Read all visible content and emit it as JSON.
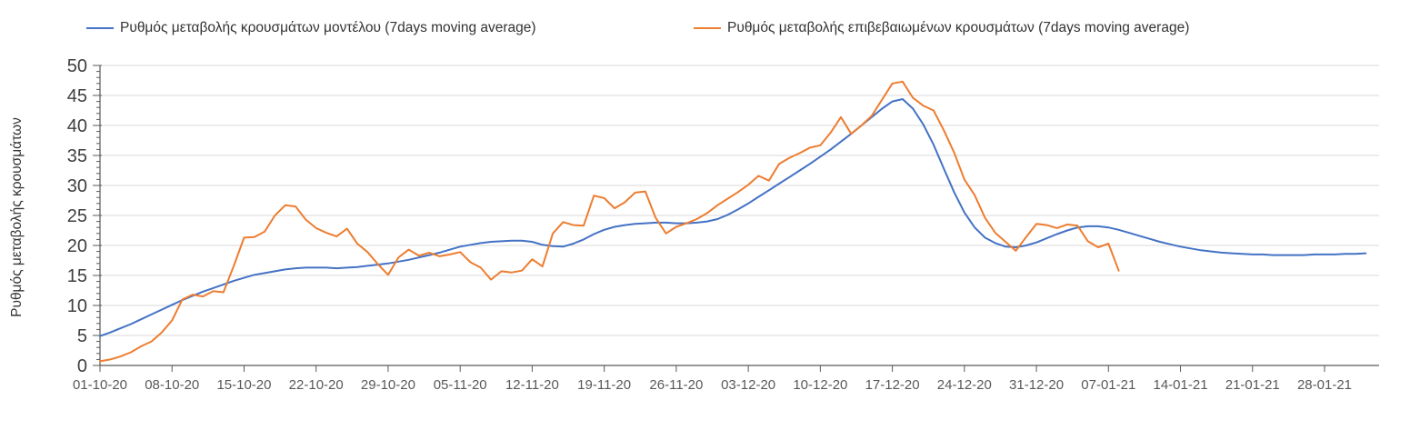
{
  "legend": {
    "items": [
      {
        "label": "Ρυθμός μεταβολής κρουσμάτων μοντέλου (7days moving average)",
        "color": "#4472C4"
      },
      {
        "label": "Ρυθμός μεταβολής επιβεβαιωμένων κρουσμάτων (7days moving average)",
        "color": "#ED7D31"
      }
    ]
  },
  "chart_data": {
    "type": "line",
    "title": "",
    "xlabel": "",
    "ylabel": "Ρυθμός μεταβολής κρουσμάτων",
    "ylim": [
      0,
      50
    ],
    "y_tick_step": 5,
    "y_minor_tick_step": 1,
    "grid": true,
    "legend_position": "top",
    "x_start_date": "01-10-20",
    "x_interval_days": 1,
    "x_tick_every_days": 7,
    "x_total_days": 124,
    "x_tick_labels": [
      "01-10-20",
      "08-10-20",
      "15-10-20",
      "22-10-20",
      "29-10-20",
      "05-11-20",
      "12-11-20",
      "19-11-20",
      "26-11-20",
      "03-12-20",
      "10-12-20",
      "17-12-20",
      "24-12-20",
      "31-12-20",
      "07-01-21",
      "14-01-21",
      "21-01-21",
      "28-01-21"
    ],
    "series": [
      {
        "name": "Ρυθμός μεταβολής κρουσμάτων μοντέλου (7days moving average)",
        "color": "#4472C4",
        "start_day": 0,
        "values": [
          4.9,
          5.5,
          6.2,
          6.9,
          7.7,
          8.5,
          9.3,
          10.1,
          10.9,
          11.6,
          12.3,
          12.9,
          13.5,
          14.1,
          14.6,
          15.1,
          15.4,
          15.7,
          16.0,
          16.2,
          16.3,
          16.3,
          16.3,
          16.2,
          16.3,
          16.4,
          16.6,
          16.8,
          17.0,
          17.3,
          17.6,
          18.0,
          18.4,
          18.8,
          19.3,
          19.8,
          20.1,
          20.4,
          20.6,
          20.7,
          20.8,
          20.8,
          20.6,
          20.1,
          19.9,
          19.8,
          20.3,
          21.0,
          21.9,
          22.6,
          23.1,
          23.4,
          23.6,
          23.7,
          23.8,
          23.8,
          23.7,
          23.7,
          23.8,
          24.0,
          24.4,
          25.1,
          26.0,
          27.0,
          28.1,
          29.2,
          30.3,
          31.4,
          32.5,
          33.6,
          34.8,
          36.0,
          37.3,
          38.6,
          40.0,
          41.4,
          42.8,
          44.0,
          44.4,
          42.8,
          40.2,
          36.8,
          32.8,
          28.9,
          25.5,
          23.0,
          21.3,
          20.4,
          19.8,
          19.7,
          20.0,
          20.5,
          21.2,
          21.9,
          22.5,
          23.0,
          23.2,
          23.2,
          23.0,
          22.6,
          22.1,
          21.6,
          21.1,
          20.6,
          20.2,
          19.8,
          19.5,
          19.2,
          19.0,
          18.8,
          18.7,
          18.6,
          18.5,
          18.5,
          18.4,
          18.4,
          18.4,
          18.4,
          18.5,
          18.5,
          18.5,
          18.6,
          18.6,
          18.7
        ]
      },
      {
        "name": "Ρυθμός μεταβολής επιβεβαιωμένων κρουσμάτων (7days moving average)",
        "color": "#ED7D31",
        "start_day": 0,
        "values": [
          0.7,
          1.0,
          1.5,
          2.2,
          3.2,
          4.0,
          5.5,
          7.5,
          11.0,
          11.8,
          11.5,
          12.4,
          12.2,
          16.6,
          21.3,
          21.4,
          22.3,
          25.0,
          26.7,
          26.5,
          24.3,
          22.9,
          22.1,
          21.5,
          22.8,
          20.3,
          18.9,
          16.9,
          15.1,
          18.0,
          19.3,
          18.3,
          18.8,
          18.2,
          18.5,
          18.9,
          17.2,
          16.3,
          14.3,
          15.7,
          15.5,
          15.8,
          17.7,
          16.5,
          22.0,
          23.9,
          23.4,
          23.3,
          28.3,
          27.9,
          26.2,
          27.2,
          28.8,
          29.0,
          24.6,
          22.0,
          23.1,
          23.7,
          24.4,
          25.4,
          26.7,
          27.8,
          28.9,
          30.1,
          31.6,
          30.8,
          33.6,
          34.6,
          35.4,
          36.3,
          36.7,
          38.8,
          41.4,
          38.6,
          40.0,
          41.6,
          44.3,
          47.0,
          47.3,
          44.6,
          43.3,
          42.5,
          39.2,
          35.5,
          31.0,
          28.4,
          24.6,
          22.1,
          20.6,
          19.1,
          21.4,
          23.6,
          23.4,
          22.9,
          23.5,
          23.3,
          20.7,
          19.7,
          20.3,
          15.8
        ]
      }
    ]
  }
}
